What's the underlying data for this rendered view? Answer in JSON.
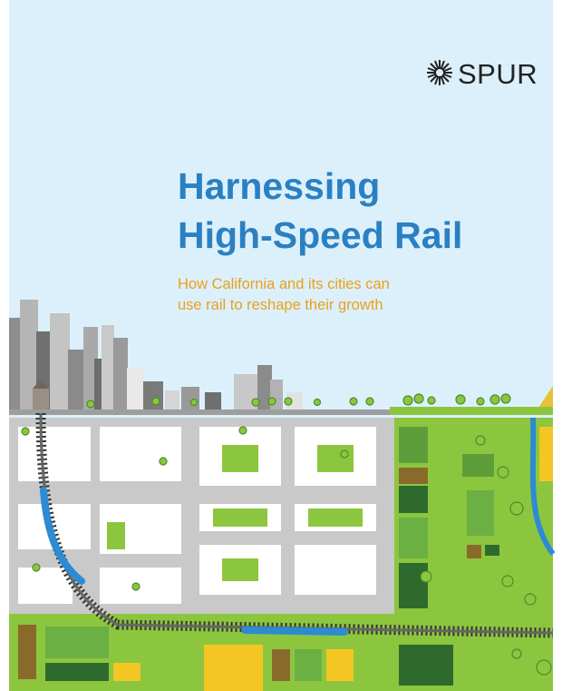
{
  "logo": {
    "name": "SPUR"
  },
  "title": [
    "Harnessing",
    "High-Speed Rail"
  ],
  "subtitle": [
    "How California and its cities can",
    "use rail to reshape their growth"
  ]
}
